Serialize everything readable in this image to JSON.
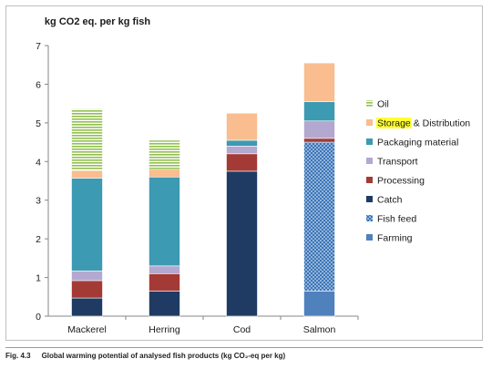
{
  "figure": {
    "caption_number": "Fig. 4.3",
    "caption_text": "Global warming potential of analysed fish products (kg CO₂-eq per kg)"
  },
  "chart_data": {
    "type": "bar",
    "stacked": true,
    "ylabel": "kg CO2 eq. per kg fish",
    "xlabel": "",
    "title": "",
    "ylim": [
      0,
      7
    ],
    "yticks": [
      "0",
      "1",
      "2",
      "3",
      "4",
      "5",
      "6",
      "7"
    ],
    "categories": [
      "Mackerel",
      "Herring",
      "Cod",
      "Salmon"
    ],
    "series": [
      {
        "name": "Farming",
        "color": "#4f81bd",
        "pattern": "solid",
        "values": [
          0,
          0,
          0,
          0.65
        ]
      },
      {
        "name": "Fish feed",
        "color": "#3a75b8",
        "pattern": "dots",
        "values": [
          0,
          0,
          0,
          3.85
        ]
      },
      {
        "name": "Catch",
        "color": "#1f3b63",
        "pattern": "solid",
        "values": [
          0.47,
          0.65,
          3.75,
          0
        ]
      },
      {
        "name": "Processing",
        "color": "#a33a36",
        "pattern": "solid",
        "values": [
          0.45,
          0.45,
          0.45,
          0.1
        ]
      },
      {
        "name": "Transport",
        "color": "#b3a8cf",
        "pattern": "solid",
        "values": [
          0.25,
          0.2,
          0.2,
          0.45
        ]
      },
      {
        "name": "Packaging material",
        "color": "#3c9ab2",
        "pattern": "solid",
        "values": [
          2.4,
          2.3,
          0.15,
          0.5
        ]
      },
      {
        "name": "Storage & Distribution",
        "color": "#f9bd8f",
        "pattern": "solid",
        "values": [
          0.2,
          0.2,
          0.7,
          1.0
        ]
      },
      {
        "name": "Oil",
        "color": "#92c04f",
        "pattern": "hstripes",
        "values": [
          1.6,
          0.75,
          0,
          0
        ]
      }
    ],
    "legend": {
      "placement": "right",
      "order": [
        "Oil",
        "Storage & Distribution",
        "Packaging material",
        "Transport",
        "Processing",
        "Catch",
        "Fish feed",
        "Farming"
      ],
      "highlighted_word": "Storage",
      "highlight_color": "#ffff33"
    },
    "grid": false
  }
}
